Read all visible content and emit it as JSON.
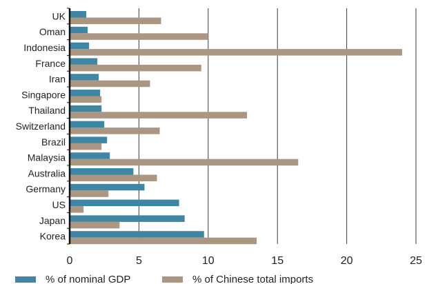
{
  "chart_data": {
    "type": "bar",
    "orientation": "horizontal",
    "categories": [
      "UK",
      "Oman",
      "Indonesia",
      "France",
      "Iran",
      "Singapore",
      "Thailand",
      "Switzerland",
      "Brazil",
      "Malaysia",
      "Australia",
      "Germany",
      "US",
      "Japan",
      "Korea"
    ],
    "series": [
      {
        "name": "% of nominal GDP",
        "color": "#3f86a4",
        "values": [
          1.2,
          1.3,
          1.4,
          2.0,
          2.1,
          2.2,
          2.3,
          2.5,
          2.7,
          2.9,
          4.6,
          5.4,
          7.9,
          8.3,
          9.7
        ]
      },
      {
        "name": "% of Chinese total imports",
        "color": "#ab9681",
        "values": [
          6.6,
          10.0,
          24.0,
          9.5,
          5.8,
          2.3,
          12.8,
          6.5,
          2.3,
          16.5,
          6.3,
          2.8,
          1.0,
          3.6,
          13.5
        ]
      }
    ],
    "xlim": [
      0,
      25
    ],
    "xticks": [
      0,
      5,
      10,
      15,
      20,
      25
    ],
    "grid": "vertical",
    "legend_position": "bottom"
  }
}
